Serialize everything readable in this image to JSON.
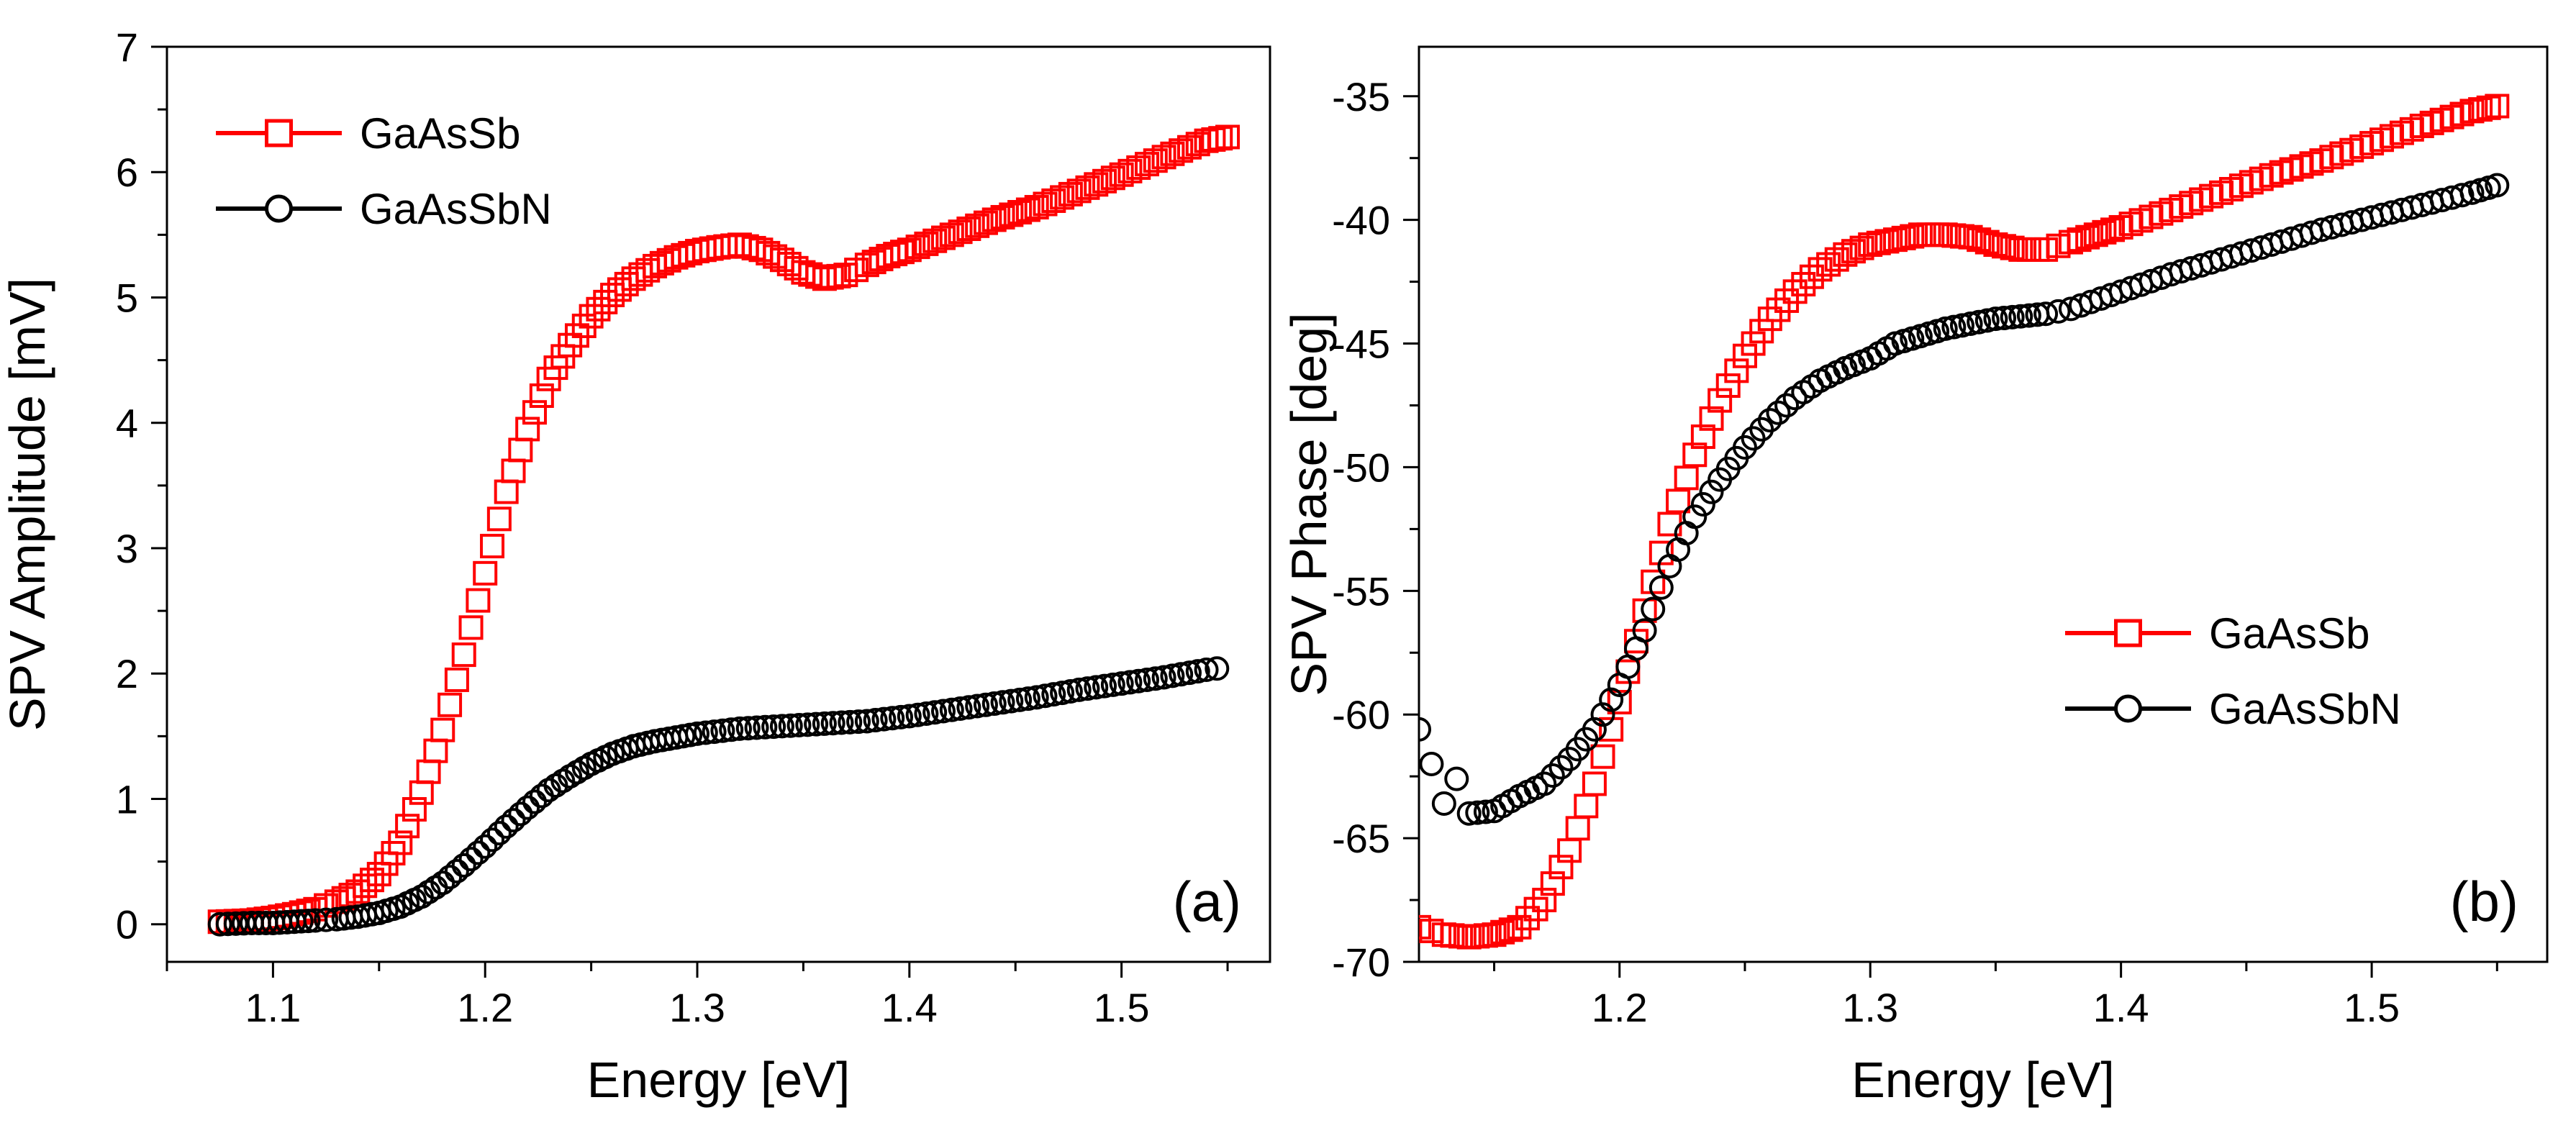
{
  "chart_data": [
    {
      "type": "scatter",
      "panel_label": "(a)",
      "xlabel": "Energy [eV]",
      "ylabel": "SPV Amplitude [mV]",
      "xlim": [
        1.05,
        1.57
      ],
      "ylim": [
        -0.3,
        7
      ],
      "xticks": [
        1.1,
        1.2,
        1.3,
        1.4,
        1.5
      ],
      "xtick_labels": [
        "1.1",
        "1.2",
        "1.3",
        "1.4",
        "1.5"
      ],
      "yticks": [
        0,
        1,
        2,
        3,
        4,
        5,
        6,
        7
      ],
      "ytick_labels": [
        "0",
        "1",
        "2",
        "3",
        "4",
        "5",
        "6",
        "7"
      ],
      "legend_position": "top-left",
      "series": [
        {
          "name": "GaAsSb",
          "marker": "square",
          "color": "#ff0000",
          "x": [
            1.075,
            1.09,
            1.1,
            1.11,
            1.12,
            1.13,
            1.14,
            1.15,
            1.16,
            1.17,
            1.18,
            1.19,
            1.2,
            1.21,
            1.22,
            1.23,
            1.24,
            1.25,
            1.26,
            1.27,
            1.28,
            1.29,
            1.3,
            1.31,
            1.32,
            1.33,
            1.34,
            1.35,
            1.36,
            1.37,
            1.38,
            1.39,
            1.4,
            1.42,
            1.44,
            1.46,
            1.48,
            1.5,
            1.52,
            1.54,
            1.55
          ],
          "y": [
            0.02,
            0.03,
            0.05,
            0.08,
            0.12,
            0.18,
            0.26,
            0.4,
            0.65,
            1.05,
            1.55,
            2.15,
            2.8,
            3.45,
            3.95,
            4.35,
            4.62,
            4.85,
            5.02,
            5.15,
            5.25,
            5.32,
            5.37,
            5.4,
            5.42,
            5.38,
            5.3,
            5.2,
            5.15,
            5.18,
            5.26,
            5.33,
            5.38,
            5.5,
            5.62,
            5.72,
            5.85,
            5.98,
            6.12,
            6.25,
            6.28
          ]
        },
        {
          "name": "GaAsSbN",
          "marker": "circle",
          "color": "#000000",
          "x": [
            1.075,
            1.09,
            1.1,
            1.11,
            1.12,
            1.13,
            1.14,
            1.15,
            1.16,
            1.17,
            1.18,
            1.19,
            1.2,
            1.21,
            1.22,
            1.23,
            1.24,
            1.25,
            1.26,
            1.27,
            1.28,
            1.29,
            1.3,
            1.32,
            1.34,
            1.36,
            1.38,
            1.4,
            1.42,
            1.44,
            1.46,
            1.48,
            1.5,
            1.52,
            1.54,
            1.545
          ],
          "y": [
            0.0,
            0.01,
            0.01,
            0.02,
            0.03,
            0.04,
            0.06,
            0.09,
            0.14,
            0.22,
            0.33,
            0.47,
            0.62,
            0.78,
            0.93,
            1.07,
            1.18,
            1.28,
            1.36,
            1.42,
            1.46,
            1.49,
            1.52,
            1.56,
            1.58,
            1.6,
            1.62,
            1.66,
            1.71,
            1.76,
            1.81,
            1.87,
            1.92,
            1.97,
            2.03,
            2.04
          ]
        }
      ]
    },
    {
      "type": "scatter",
      "panel_label": "(b)",
      "xlabel": "Energy [eV]",
      "ylabel": "SPV Phase [deg]",
      "xlim": [
        1.12,
        1.57
      ],
      "ylim": [
        -70,
        -33
      ],
      "xticks": [
        1.2,
        1.3,
        1.4,
        1.5
      ],
      "xtick_labels": [
        "1.2",
        "1.3",
        "1.4",
        "1.5"
      ],
      "yticks": [
        -70,
        -65,
        -60,
        -55,
        -50,
        -45,
        -40,
        -35
      ],
      "ytick_labels": [
        "-70",
        "-65",
        "-60",
        "-55",
        "-50",
        "-45",
        "-40",
        "-35"
      ],
      "legend_position": "center-right",
      "series": [
        {
          "name": "GaAsSb",
          "marker": "square",
          "color": "#ff0000",
          "x": [
            1.12,
            1.13,
            1.14,
            1.15,
            1.16,
            1.17,
            1.18,
            1.19,
            1.2,
            1.21,
            1.22,
            1.23,
            1.24,
            1.25,
            1.26,
            1.27,
            1.28,
            1.29,
            1.3,
            1.31,
            1.32,
            1.33,
            1.34,
            1.35,
            1.36,
            1.37,
            1.38,
            1.39,
            1.4,
            1.42,
            1.44,
            1.46,
            1.48,
            1.5,
            1.52,
            1.54,
            1.55
          ],
          "y": [
            -68.6,
            -68.9,
            -69.0,
            -68.9,
            -68.6,
            -67.5,
            -65.5,
            -62.8,
            -59.5,
            -55.8,
            -52.3,
            -49.5,
            -47.3,
            -45.5,
            -44.0,
            -42.9,
            -42.0,
            -41.4,
            -41.0,
            -40.8,
            -40.6,
            -40.6,
            -40.7,
            -41.0,
            -41.2,
            -41.2,
            -40.9,
            -40.6,
            -40.3,
            -39.6,
            -38.9,
            -38.2,
            -37.6,
            -36.9,
            -36.2,
            -35.6,
            -35.4
          ]
        },
        {
          "name": "GaAsSbN",
          "marker": "circle",
          "color": "#000000",
          "x": [
            1.12,
            1.125,
            1.13,
            1.135,
            1.14,
            1.15,
            1.16,
            1.17,
            1.18,
            1.19,
            1.2,
            1.21,
            1.22,
            1.23,
            1.24,
            1.25,
            1.26,
            1.27,
            1.28,
            1.29,
            1.3,
            1.31,
            1.32,
            1.33,
            1.34,
            1.35,
            1.36,
            1.37,
            1.38,
            1.4,
            1.42,
            1.44,
            1.46,
            1.48,
            1.5,
            1.52,
            1.54,
            1.55
          ],
          "y": [
            -60.6,
            -62.0,
            -63.6,
            -62.6,
            -64.0,
            -63.9,
            -63.3,
            -62.8,
            -61.8,
            -60.6,
            -58.8,
            -56.6,
            -54.0,
            -52.0,
            -50.5,
            -49.2,
            -48.1,
            -47.2,
            -46.5,
            -46.0,
            -45.6,
            -45.0,
            -44.7,
            -44.4,
            -44.2,
            -44.0,
            -43.9,
            -43.8,
            -43.6,
            -42.9,
            -42.2,
            -41.6,
            -41.0,
            -40.4,
            -39.9,
            -39.4,
            -38.9,
            -38.6
          ]
        }
      ]
    }
  ]
}
